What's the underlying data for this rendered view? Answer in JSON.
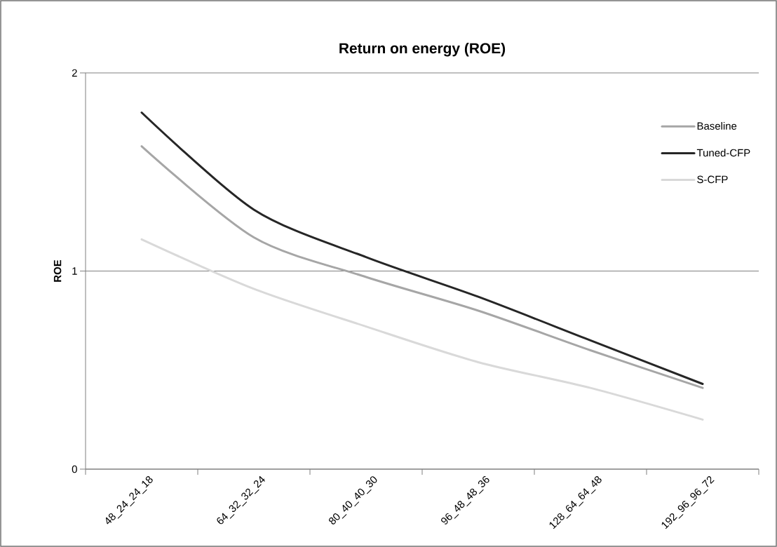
{
  "chart_data": {
    "type": "line",
    "title": "Return on energy (ROE)",
    "ylabel": "ROE",
    "categories": [
      "48_24_24_18",
      "64_32_32_24",
      "80_40_40_30",
      "96_48_48_36",
      "128_64_64_48",
      "192_96_96_72"
    ],
    "series": [
      {
        "name": "Baseline",
        "color": "#a6a6a6",
        "values": [
          1.63,
          1.17,
          0.97,
          0.8,
          0.6,
          0.41
        ]
      },
      {
        "name": "Tuned-CFP",
        "color": "#262626",
        "values": [
          1.8,
          1.31,
          1.07,
          0.87,
          0.65,
          0.43
        ]
      },
      {
        "name": "S-CFP",
        "color": "#d9d9d9",
        "values": [
          1.16,
          0.91,
          0.72,
          0.54,
          0.41,
          0.25
        ]
      }
    ],
    "ylim": [
      0,
      2
    ],
    "yticks": [
      0,
      1,
      2
    ],
    "grid": "y",
    "legend": "right",
    "line_style": "solid",
    "marker": "none"
  }
}
